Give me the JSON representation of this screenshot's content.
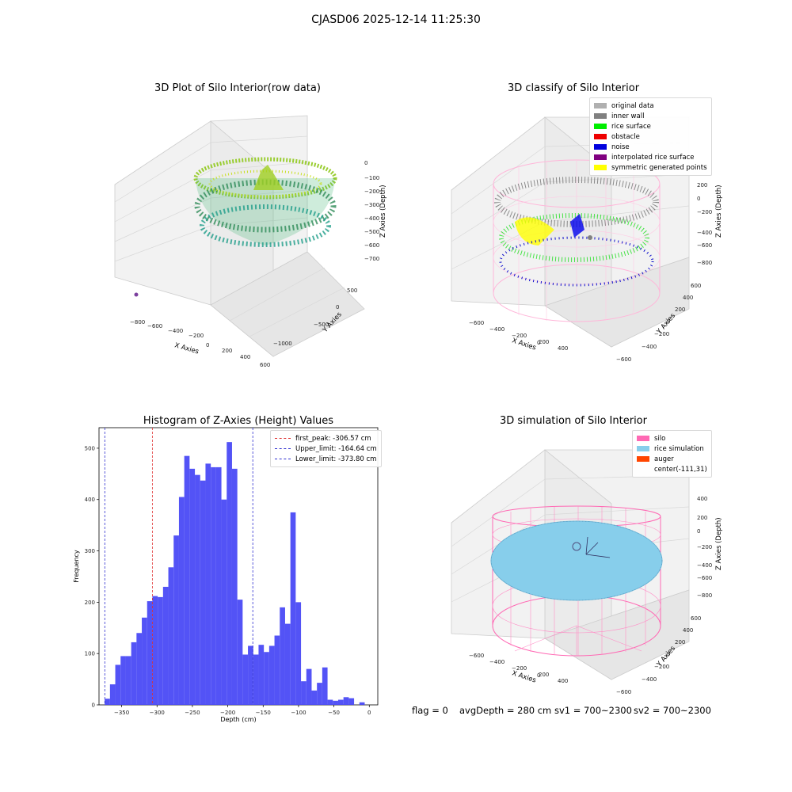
{
  "suptitle": "CJASD06 2025-12-14 11:25:30",
  "colors": {
    "hist_bar": "#4a4af5",
    "first_peak": "#e03030",
    "limits": "#3030d0",
    "silo": "#ff69b4",
    "rice": "#87ceeb"
  },
  "panel1": {
    "title": "3D Plot of Silo Interior(row data)",
    "x_label": "X Axies",
    "y_label": "Y Axies",
    "z_label": "Z Axies (Depth)",
    "x_ticks": [
      "−800",
      "−600",
      "−400",
      "−200",
      "0",
      "200",
      "400",
      "600"
    ],
    "y_ticks": [
      "500",
      "0",
      "−500",
      "−1000"
    ],
    "z_ticks": [
      "0",
      "−100",
      "−200",
      "−300",
      "−400",
      "−500",
      "−600",
      "−700"
    ]
  },
  "panel2": {
    "title": "3D classify of Silo Interior",
    "x_label": "X Axies",
    "y_label": "Y Axies",
    "z_label": "Z Axies (Depth)",
    "x_ticks": [
      "−600",
      "−400",
      "−200",
      "0",
      "200",
      "400"
    ],
    "y_ticks": [
      "600",
      "400",
      "200",
      "0",
      "−200",
      "−400",
      "−600"
    ],
    "z_ticks": [
      "400",
      "200",
      "0",
      "−200",
      "−400",
      "−600",
      "−800"
    ],
    "legend": [
      {
        "label": "original data",
        "color": "#b0b0b0"
      },
      {
        "label": "inner wall",
        "color": "#808080"
      },
      {
        "label": "rice surface",
        "color": "#00ee00"
      },
      {
        "label": "obstacle",
        "color": "#ee0000"
      },
      {
        "label": "noise",
        "color": "#0000dd"
      },
      {
        "label": "interpolated rice surface",
        "color": "#800080"
      },
      {
        "label": "symmetric generated points",
        "color": "#ffff00"
      }
    ]
  },
  "panel4": {
    "title": "3D simulation of Silo Interior",
    "x_label": "X Axies",
    "y_label": "Y Axies",
    "z_label": "Z Axies (Depth)",
    "x_ticks": [
      "−600",
      "−400",
      "−200",
      "0",
      "200",
      "400"
    ],
    "y_ticks": [
      "600",
      "400",
      "200",
      "0",
      "−200",
      "−400",
      "−600"
    ],
    "z_ticks": [
      "400",
      "200",
      "0",
      "−200",
      "−400",
      "−600",
      "−800"
    ],
    "legend": [
      {
        "label": "silo",
        "color": "#ff69b4"
      },
      {
        "label": "rice simulation",
        "color": "#87ceeb"
      },
      {
        "label": "auger",
        "color": "#ff4500"
      },
      {
        "label": "center(-111,31)",
        "color": ""
      }
    ]
  },
  "status": {
    "flag": "flag = 0",
    "avg_depth": "avgDepth = 280 cm",
    "sv1": "sv1 = 700~2300",
    "sv2": "sv2 = 700~2300"
  },
  "chart_data": [
    {
      "type": "bar",
      "title": "Histogram of Z-Axies (Height) Values",
      "xlabel": "Depth (cm)",
      "ylabel": "Frequency",
      "xlim": [
        -382,
        12
      ],
      "ylim": [
        0,
        540
      ],
      "x_ticks": [
        -350,
        -300,
        -250,
        -200,
        -150,
        -100,
        -50,
        0
      ],
      "y_ticks": [
        0,
        100,
        200,
        300,
        400,
        500
      ],
      "bin_start": -374,
      "bin_width": 7.5,
      "values": [
        12,
        40,
        78,
        95,
        95,
        122,
        140,
        170,
        202,
        212,
        210,
        230,
        268,
        330,
        405,
        485,
        460,
        448,
        437,
        470,
        463,
        463,
        400,
        512,
        460,
        205,
        98,
        115,
        98,
        117,
        103,
        115,
        135,
        190,
        158,
        375,
        200,
        46,
        70,
        28,
        43,
        73,
        10,
        8,
        10,
        15,
        13,
        0,
        5
      ],
      "vlines": [
        {
          "name": "first_peak: -306.57 cm",
          "x": -306.57,
          "color": "#e03030"
        },
        {
          "name": "Upper_limit: -164.64 cm",
          "x": -164.64,
          "color": "#3030d0"
        },
        {
          "name": "Lower_limit: -373.80 cm",
          "x": -373.8,
          "color": "#3030d0"
        }
      ],
      "legend_position": "upper right"
    }
  ]
}
